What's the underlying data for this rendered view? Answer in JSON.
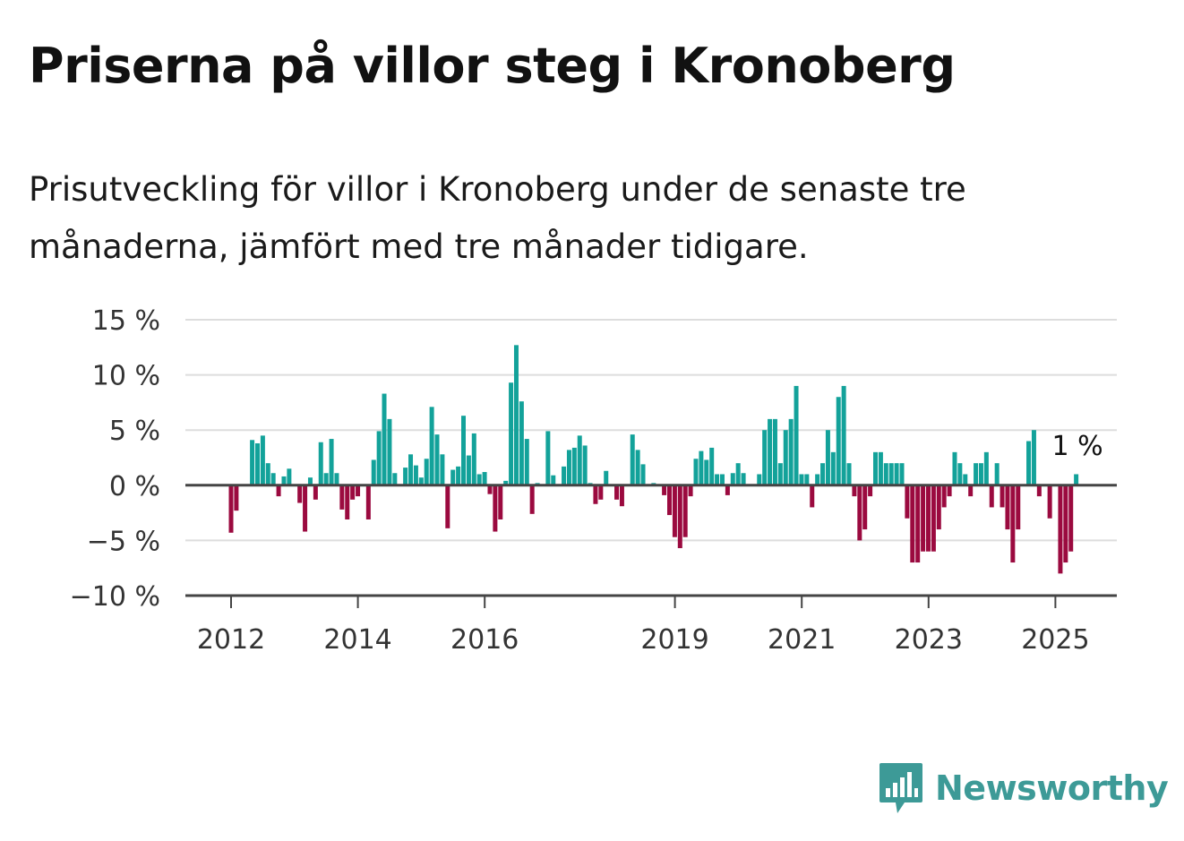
{
  "title": "Priserna på villor steg i Kronoberg",
  "subtitle": "Prisutveckling för villor i Kronoberg under de senaste tre månaderna, jämfört med tre månader tidigare.",
  "brand": {
    "name": "Newsworthy",
    "icon": "newsworthy-logo-icon"
  },
  "colors": {
    "positive": "#13a29a",
    "negative": "#9b0a3f",
    "grid": "#dddddd",
    "axis": "#444444"
  },
  "chart_data": {
    "type": "bar",
    "title": "Priserna på villor steg i Kronoberg",
    "subtitle": "Prisutveckling för villor i Kronoberg under de senaste tre månaderna, jämfört med tre månader tidigare.",
    "xlabel": "",
    "ylabel": "",
    "ylim": [
      -10,
      15
    ],
    "grid": true,
    "yticks": [
      {
        "value": 15,
        "label": "15 %"
      },
      {
        "value": 10,
        "label": "10 %"
      },
      {
        "value": 5,
        "label": "5 %"
      },
      {
        "value": 0,
        "label": "0 %"
      },
      {
        "value": -5,
        "label": "−5 %"
      },
      {
        "value": -10,
        "label": "−10 %"
      }
    ],
    "xticks": [
      {
        "value": 2012,
        "label": "2012"
      },
      {
        "value": 2014,
        "label": "2014"
      },
      {
        "value": 2016,
        "label": "2016"
      },
      {
        "value": 2019,
        "label": "2019"
      },
      {
        "value": 2021,
        "label": "2021"
      },
      {
        "value": 2023,
        "label": "2023"
      },
      {
        "value": 2025,
        "label": "2025"
      }
    ],
    "x_start": 2012.0,
    "x_step": 0.0833,
    "values": [
      -4.3,
      -2.3,
      0,
      0,
      4.1,
      3.8,
      4.5,
      2.0,
      1.1,
      -1.0,
      0.8,
      1.5,
      0,
      -1.6,
      -4.2,
      0.7,
      -1.3,
      3.9,
      1.1,
      4.2,
      1.1,
      -2.2,
      -3.1,
      -1.3,
      -1.0,
      0,
      -3.1,
      2.3,
      4.9,
      8.3,
      6.0,
      1.1,
      0,
      1.6,
      2.8,
      1.8,
      0.7,
      2.4,
      7.1,
      4.6,
      2.8,
      -3.9,
      1.4,
      1.7,
      6.3,
      2.7,
      4.7,
      1.0,
      1.2,
      -0.8,
      -4.2,
      -3.1,
      0.4,
      9.3,
      12.7,
      7.6,
      4.2,
      -2.6,
      0.2,
      0,
      4.9,
      0.9,
      0,
      1.7,
      3.2,
      3.4,
      4.5,
      3.6,
      0.2,
      -1.7,
      -1.3,
      1.3,
      0,
      -1.3,
      -1.9,
      0.1,
      4.6,
      3.2,
      1.9,
      0,
      0.2,
      0,
      -0.9,
      -2.7,
      -4.7,
      -5.7,
      -4.7,
      -1.0,
      2.4,
      3.1,
      2.3,
      3.4,
      1.0,
      1.0,
      -0.9,
      1.1,
      2.0,
      1.1,
      0,
      0,
      1.0,
      5.0,
      6.0,
      6.0,
      2.0,
      5.0,
      6.0,
      9.0,
      1.0,
      1.0,
      -2.0,
      1.0,
      2.0,
      5.0,
      3.0,
      8.0,
      9.0,
      2.0,
      -1.0,
      -5.0,
      -4.0,
      -1.0,
      3.0,
      3.0,
      2.0,
      2.0,
      2.0,
      2.0,
      -3.0,
      -7.0,
      -7.0,
      -6.0,
      -6.0,
      -6.0,
      -4.0,
      -2.0,
      -1.0,
      3.0,
      2.0,
      1.0,
      -1.0,
      2.0,
      2.0,
      3.0,
      -2.0,
      2.0,
      -2.0,
      -4.0,
      -7.0,
      -4.0,
      0,
      4.0,
      5.0,
      -1.0,
      0,
      -3.0,
      0,
      -8.0,
      -7.0,
      -6.0,
      1.0
    ],
    "last_value_label": "1 %"
  }
}
